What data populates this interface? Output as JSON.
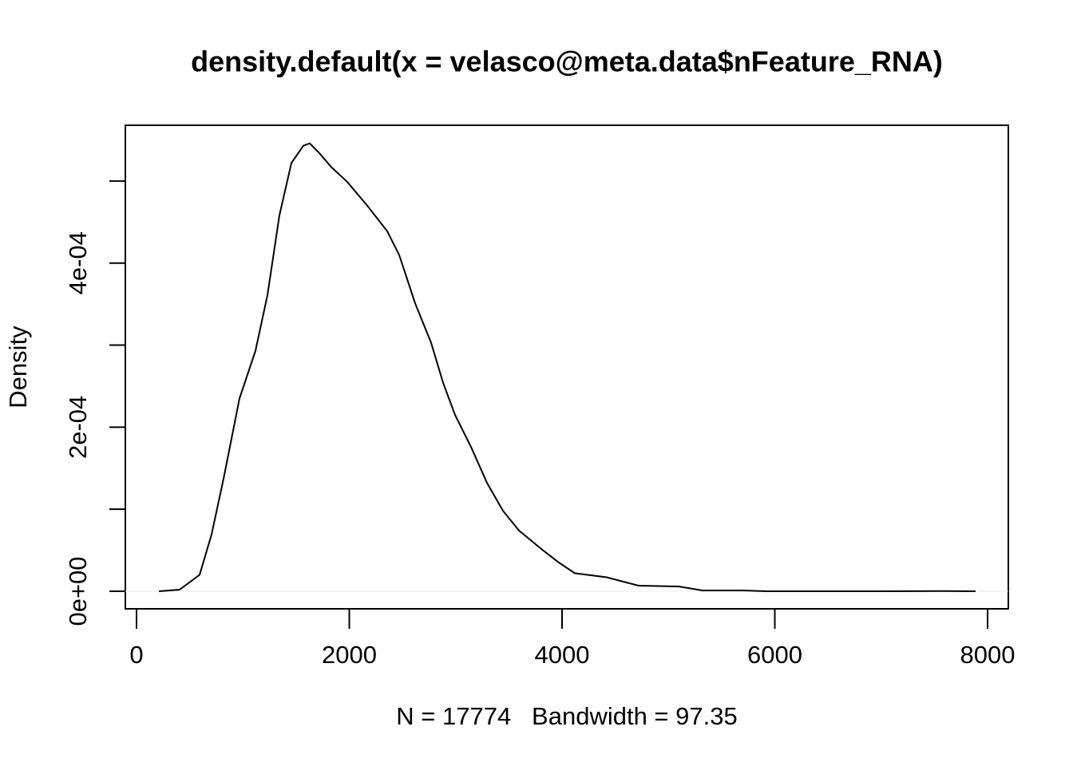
{
  "chart_data": {
    "type": "line",
    "title": "density.default(x = velasco@meta.data$nFeature_RNA)",
    "xlabel": "N = 17774   Bandwidth = 97.35",
    "ylabel": "Density",
    "x": [
      210,
      405,
      593,
      705,
      818,
      968,
      1118,
      1231,
      1343,
      1456,
      1568,
      1628,
      1719,
      1831,
      1981,
      2169,
      2356,
      2469,
      2619,
      2769,
      2882,
      2994,
      3144,
      3295,
      3445,
      3595,
      3820,
      3970,
      4120,
      4420,
      4720,
      5096,
      5321,
      5696,
      5921,
      6972,
      7572,
      7887
    ],
    "series": [
      {
        "color": "#000000",
        "values": [
          0,
          1.9e-06,
          2e-05,
          6.9e-05,
          0.000137,
          0.000235,
          0.000293,
          0.000361,
          0.000458,
          0.000522,
          0.000543,
          0.000546,
          0.000534,
          0.000517,
          0.000499,
          0.00047,
          0.000439,
          0.00041,
          0.000351,
          0.000303,
          0.000254,
          0.000215,
          0.000176,
          0.000132,
          9.8e-05,
          7.4e-05,
          5e-05,
          3.5e-05,
          2.2e-05,
          1.7e-05,
          6.8e-06,
          5.8e-06,
          1e-06,
          1e-06,
          0,
          0,
          3e-07,
          0
        ]
      }
    ],
    "xlim": [
      -105,
      8195
    ],
    "ylim": [
      -2.14e-05,
      0.000568
    ],
    "xticks": [
      0,
      2000,
      4000,
      6000,
      8000
    ],
    "yticks": [
      {
        "value": 0,
        "label": "0e+00"
      },
      {
        "value": 0.0002,
        "label": "2e-04"
      },
      {
        "value": 0.0004,
        "label": "4e-04"
      }
    ],
    "yminor_ticks": [
      0.0001,
      0.0003,
      0.0005
    ],
    "zero_line": true,
    "grid": false
  }
}
